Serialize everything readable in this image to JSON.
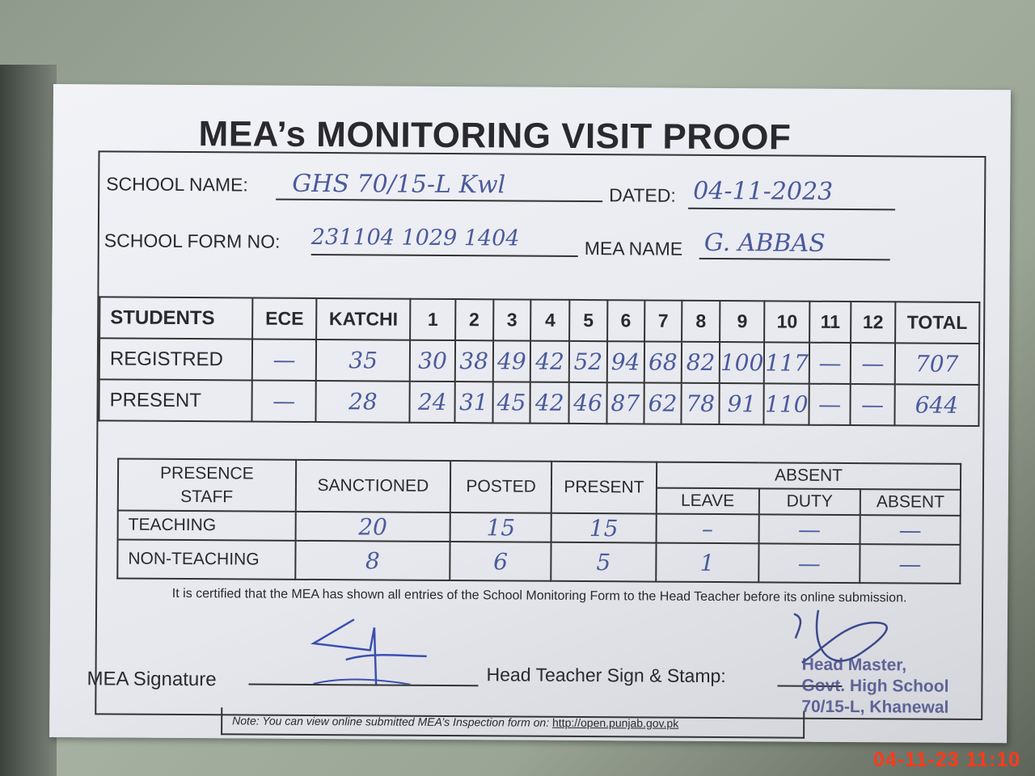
{
  "title": "MEA’s MONITORING VISIT PROOF",
  "header": {
    "school_name_label": "SCHOOL NAME:",
    "school_name": "GHS 70/15-L Kwl",
    "dated_label": "DATED:",
    "dated": "04-11-2023",
    "form_no_label": "SCHOOL FORM NO:",
    "form_no": "231104 1029 1404",
    "mea_name_label": "MEA NAME",
    "mea_name": "G. ABBAS"
  },
  "students": {
    "columns": [
      "STUDENTS",
      "ECE",
      "KATCHI",
      "1",
      "2",
      "3",
      "4",
      "5",
      "6",
      "7",
      "8",
      "9",
      "10",
      "11",
      "12",
      "TOTAL"
    ],
    "rows": [
      {
        "label": "REGISTRED",
        "values": [
          "—",
          "35",
          "30",
          "38",
          "49",
          "42",
          "52",
          "94",
          "68",
          "82",
          "100",
          "117",
          "—",
          "—",
          "707"
        ]
      },
      {
        "label": "PRESENT",
        "values": [
          "—",
          "28",
          "24",
          "31",
          "45",
          "42",
          "46",
          "87",
          "62",
          "78",
          "91",
          "110",
          "—",
          "—",
          "644"
        ]
      }
    ]
  },
  "staff": {
    "corner_label": "PRESENCE STAFF",
    "columns": [
      "SANCTIONED",
      "POSTED",
      "PRESENT"
    ],
    "absent_label": "ABSENT",
    "absent_columns": [
      "LEAVE",
      "DUTY",
      "ABSENT"
    ],
    "rows": [
      {
        "label": "TEACHING",
        "values": [
          "20",
          "15",
          "15",
          "–",
          "—",
          "—"
        ]
      },
      {
        "label": "NON-TEACHING",
        "values": [
          "8",
          "6",
          "5",
          "1",
          "—",
          "—"
        ]
      }
    ]
  },
  "certification": "It is certified that the MEA has shown all entries of the School Monitoring Form to the Head Teacher before its online submission.",
  "signatures": {
    "mea_label": "MEA Signature",
    "head_label": "Head Teacher Sign & Stamp:",
    "stamp_lines": [
      "Head Master,",
      "Govt. High School",
      "70/15-L, Khanewal"
    ]
  },
  "note": {
    "text": "Note: You can view online submitted MEA’s Inspection form on: ",
    "link": "http://open.punjab.gov.pk"
  },
  "timestamp": "04-11-23  11:10",
  "colors": {
    "ink": "#4b5a9c",
    "timestamp": "#ff3a1a"
  }
}
